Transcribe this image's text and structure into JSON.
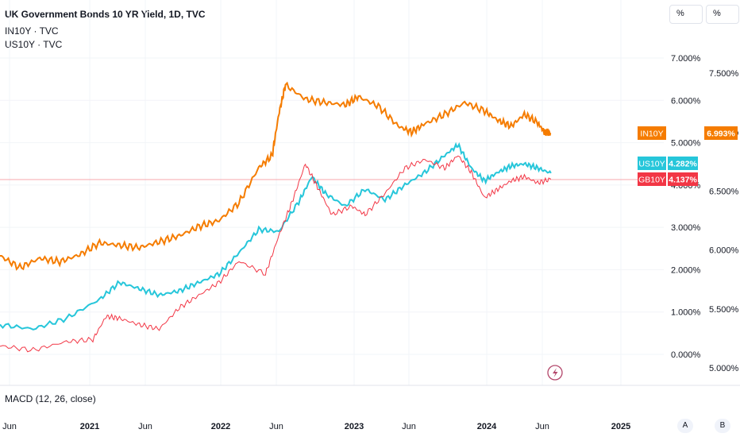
{
  "header": {
    "title": "UK Government Bonds 10 YR Yield, 1D, TVC",
    "series2": "IN10Y · TVC",
    "series3": "US10Y · TVC",
    "btn_left": "%",
    "btn_right": "%"
  },
  "indicator": {
    "label": "MACD (12, 26, close)"
  },
  "scale_buttons": {
    "a": "A",
    "b": "B"
  },
  "colors": {
    "gb": "#f23645",
    "gb_up": "#26a69a",
    "in": "#f57c00",
    "us": "#26c6da",
    "grid": "#f0f3fa",
    "text": "#131722"
  },
  "icons": {
    "flash": "lightning-icon"
  },
  "chart_data": {
    "type": "line",
    "x_ticks": [
      "Jun",
      "2021",
      "Jun",
      "2022",
      "Jun",
      "2023",
      "Jun",
      "2024",
      "Jun",
      "2025"
    ],
    "left_axis_ticks": [
      "7.000%",
      "6.000%",
      "5.000%",
      "4.000%",
      "3.000%",
      "2.000%",
      "1.000%",
      "0.000%"
    ],
    "right_axis_ticks": [
      "7.500%",
      "7.000%",
      "6.500%",
      "6.000%",
      "5.500%",
      "5.000%"
    ],
    "left_axis": {
      "min": 0.0,
      "max": 7.0,
      "unit": "%"
    },
    "right_axis": {
      "min": 5.0,
      "max": 7.5,
      "unit": "%"
    },
    "labels": [
      {
        "name": "IN10Y",
        "value": "6.993%"
      },
      {
        "name": "US10Y",
        "value": "4.282%"
      },
      {
        "name": "GB10Y",
        "value": "4.137%"
      }
    ],
    "series": [
      {
        "name": "IN10Y",
        "axis": "right",
        "color": "#f57c00",
        "points": [
          [
            0.0,
            5.95
          ],
          [
            0.03,
            5.85
          ],
          [
            0.06,
            5.93
          ],
          [
            0.09,
            5.9
          ],
          [
            0.12,
            5.96
          ],
          [
            0.15,
            6.06
          ],
          [
            0.18,
            6.04
          ],
          [
            0.21,
            6.02
          ],
          [
            0.24,
            6.07
          ],
          [
            0.27,
            6.12
          ],
          [
            0.3,
            6.2
          ],
          [
            0.33,
            6.25
          ],
          [
            0.36,
            6.4
          ],
          [
            0.39,
            6.7
          ],
          [
            0.41,
            6.8
          ],
          [
            0.42,
            7.15
          ],
          [
            0.43,
            7.4
          ],
          [
            0.46,
            7.28
          ],
          [
            0.49,
            7.25
          ],
          [
            0.52,
            7.23
          ],
          [
            0.54,
            7.3
          ],
          [
            0.57,
            7.22
          ],
          [
            0.6,
            7.05
          ],
          [
            0.62,
            7.0
          ],
          [
            0.64,
            7.07
          ],
          [
            0.67,
            7.15
          ],
          [
            0.7,
            7.25
          ],
          [
            0.73,
            7.18
          ],
          [
            0.75,
            7.1
          ],
          [
            0.77,
            7.05
          ],
          [
            0.79,
            7.15
          ],
          [
            0.81,
            7.08
          ],
          [
            0.82,
            7.0
          ],
          [
            0.83,
            6.99
          ]
        ]
      },
      {
        "name": "US10Y",
        "axis": "left",
        "color": "#26c6da",
        "points": [
          [
            0.0,
            0.7
          ],
          [
            0.05,
            0.6
          ],
          [
            0.1,
            0.85
          ],
          [
            0.15,
            1.3
          ],
          [
            0.18,
            1.7
          ],
          [
            0.21,
            1.55
          ],
          [
            0.24,
            1.4
          ],
          [
            0.27,
            1.5
          ],
          [
            0.3,
            1.7
          ],
          [
            0.33,
            1.9
          ],
          [
            0.36,
            2.4
          ],
          [
            0.39,
            2.95
          ],
          [
            0.42,
            2.9
          ],
          [
            0.45,
            3.6
          ],
          [
            0.47,
            4.2
          ],
          [
            0.49,
            3.8
          ],
          [
            0.52,
            3.5
          ],
          [
            0.55,
            3.9
          ],
          [
            0.58,
            3.65
          ],
          [
            0.61,
            4.0
          ],
          [
            0.64,
            4.3
          ],
          [
            0.67,
            4.7
          ],
          [
            0.69,
            4.95
          ],
          [
            0.71,
            4.4
          ],
          [
            0.73,
            4.1
          ],
          [
            0.75,
            4.3
          ],
          [
            0.77,
            4.45
          ],
          [
            0.79,
            4.5
          ],
          [
            0.81,
            4.4
          ],
          [
            0.83,
            4.28
          ]
        ]
      },
      {
        "name": "GB10Y",
        "axis": "left",
        "color": "#f23645",
        "points": [
          [
            0.0,
            0.2
          ],
          [
            0.05,
            0.1
          ],
          [
            0.1,
            0.3
          ],
          [
            0.14,
            0.35
          ],
          [
            0.16,
            0.9
          ],
          [
            0.18,
            0.85
          ],
          [
            0.21,
            0.7
          ],
          [
            0.24,
            0.6
          ],
          [
            0.27,
            1.1
          ],
          [
            0.3,
            1.4
          ],
          [
            0.33,
            1.7
          ],
          [
            0.36,
            2.2
          ],
          [
            0.4,
            1.9
          ],
          [
            0.42,
            2.8
          ],
          [
            0.44,
            3.6
          ],
          [
            0.46,
            4.5
          ],
          [
            0.48,
            3.9
          ],
          [
            0.5,
            3.3
          ],
          [
            0.53,
            3.5
          ],
          [
            0.55,
            3.3
          ],
          [
            0.58,
            3.8
          ],
          [
            0.61,
            4.4
          ],
          [
            0.64,
            4.6
          ],
          [
            0.67,
            4.4
          ],
          [
            0.69,
            4.7
          ],
          [
            0.71,
            4.3
          ],
          [
            0.73,
            3.7
          ],
          [
            0.75,
            3.9
          ],
          [
            0.77,
            4.1
          ],
          [
            0.79,
            4.2
          ],
          [
            0.81,
            4.05
          ],
          [
            0.83,
            4.14
          ]
        ]
      }
    ]
  }
}
